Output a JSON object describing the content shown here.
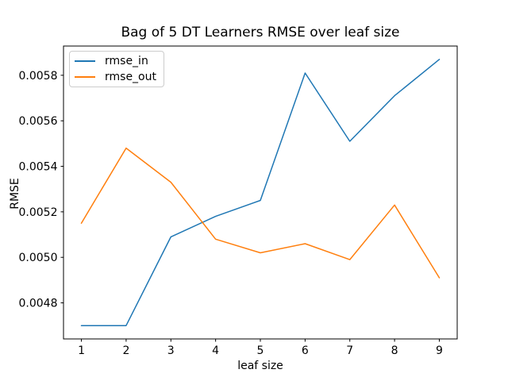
{
  "chart_data": {
    "type": "line",
    "title": "Bag of 5 DT Learners RMSE over leaf size",
    "xlabel": "leaf size",
    "ylabel": "RMSE",
    "x": [
      1,
      2,
      3,
      4,
      5,
      6,
      7,
      8,
      9
    ],
    "series": [
      {
        "name": "rmse_in",
        "color": "#1f77b4",
        "values": [
          0.0047,
          0.0047,
          0.00509,
          0.00518,
          0.00525,
          0.00581,
          0.00551,
          0.00571,
          0.00587
        ]
      },
      {
        "name": "rmse_out",
        "color": "#ff7f0e",
        "values": [
          0.00515,
          0.00548,
          0.00533,
          0.00508,
          0.00502,
          0.00506,
          0.00499,
          0.00523,
          0.00491
        ]
      }
    ],
    "xlim": [
      0.6,
      9.4
    ],
    "ylim": [
      0.0046415,
      0.0059285
    ],
    "xticks": {
      "values": [
        1,
        2,
        3,
        4,
        5,
        6,
        7,
        8,
        9
      ],
      "labels": [
        "1",
        "2",
        "3",
        "4",
        "5",
        "6",
        "7",
        "8",
        "9"
      ]
    },
    "yticks": {
      "values": [
        0.0048,
        0.005,
        0.0052,
        0.0054,
        0.0056,
        0.0058
      ],
      "labels": [
        "0.0048",
        "0.0050",
        "0.0052",
        "0.0054",
        "0.0056",
        "0.0058"
      ]
    },
    "legend": {
      "position": "upper left"
    },
    "grid": false,
    "line_width": 1.5,
    "background": "#ffffff",
    "axis_color": "#000000"
  }
}
